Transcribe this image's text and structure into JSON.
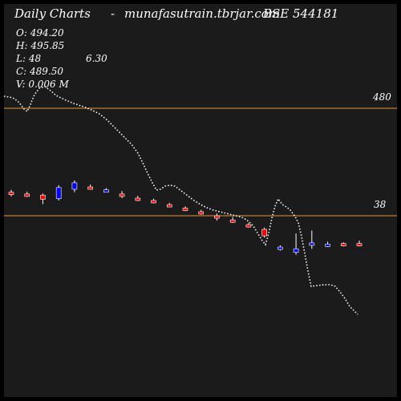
{
  "header": {
    "title": "Daily Charts",
    "separator": "-",
    "site": "munafasutrain.tbrjar.com",
    "symbol": "BSE 544181"
  },
  "ohlc": {
    "open": "O: 494.20",
    "high": "H: 495.85",
    "low": "L: 48",
    "low_extra": "6.30",
    "close": "C: 489.50",
    "volume": "V: 0.006  M"
  },
  "levels": {
    "upper_label": "480",
    "lower_label": "38"
  },
  "colors": {
    "background": "#000000",
    "panel": "#1b1b1b",
    "level_line": "#e8943a",
    "up_candle": "#0000ff",
    "down_candle": "#ff0000",
    "wick": "#ffffff",
    "ma_dots": "#ffffff"
  },
  "chart_data": {
    "type": "candlestick",
    "reference_lines": [
      480,
      38
    ],
    "candles": [
      {
        "o": 0.56,
        "h": 0.58,
        "l": 0.525,
        "c": 0.545,
        "dir": "down"
      },
      {
        "o": 0.545,
        "h": 0.565,
        "l": 0.52,
        "c": 0.535,
        "dir": "down"
      },
      {
        "o": 0.535,
        "h": 0.55,
        "l": 0.46,
        "c": 0.5,
        "dir": "down"
      },
      {
        "o": 0.505,
        "h": 0.62,
        "l": 0.49,
        "c": 0.6,
        "dir": "up"
      },
      {
        "o": 0.585,
        "h": 0.66,
        "l": 0.56,
        "c": 0.64,
        "dir": "up"
      },
      {
        "o": 0.605,
        "h": 0.625,
        "l": 0.585,
        "c": 0.59,
        "dir": "down"
      },
      {
        "o": 0.58,
        "h": 0.595,
        "l": 0.565,
        "c": 0.575,
        "dir": "up"
      },
      {
        "o": 0.545,
        "h": 0.57,
        "l": 0.51,
        "c": 0.525,
        "dir": "down"
      },
      {
        "o": 0.51,
        "h": 0.53,
        "l": 0.485,
        "c": 0.495,
        "dir": "down"
      },
      {
        "o": 0.49,
        "h": 0.505,
        "l": 0.465,
        "c": 0.475,
        "dir": "down"
      },
      {
        "o": 0.455,
        "h": 0.47,
        "l": 0.435,
        "c": 0.445,
        "dir": "down"
      },
      {
        "o": 0.425,
        "h": 0.44,
        "l": 0.4,
        "c": 0.41,
        "dir": "down"
      },
      {
        "o": 0.395,
        "h": 0.41,
        "l": 0.37,
        "c": 0.38,
        "dir": "down"
      },
      {
        "o": 0.36,
        "h": 0.38,
        "l": 0.32,
        "c": 0.34,
        "dir": "down"
      },
      {
        "o": 0.325,
        "h": 0.35,
        "l": 0.3,
        "c": 0.31,
        "dir": "down"
      },
      {
        "o": 0.285,
        "h": 0.3,
        "l": 0.26,
        "c": 0.27,
        "dir": "down"
      },
      {
        "o": 0.245,
        "h": 0.26,
        "l": 0.175,
        "c": 0.19,
        "dir": "down"
      },
      {
        "o": 0.095,
        "h": 0.11,
        "l": 0.065,
        "c": 0.085,
        "dir": "up"
      },
      {
        "o": 0.08,
        "h": 0.21,
        "l": 0.03,
        "c": 0.05,
        "dir": "up"
      },
      {
        "o": 0.11,
        "h": 0.235,
        "l": 0.08,
        "c": 0.13,
        "dir": "up"
      },
      {
        "o": 0.11,
        "h": 0.14,
        "l": 0.095,
        "c": 0.12,
        "dir": "up"
      },
      {
        "o": 0.115,
        "h": 0.135,
        "l": 0.1,
        "c": 0.125,
        "dir": "down"
      },
      {
        "o": 0.125,
        "h": 0.15,
        "l": 0.1,
        "c": 0.11,
        "dir": "down"
      }
    ]
  }
}
